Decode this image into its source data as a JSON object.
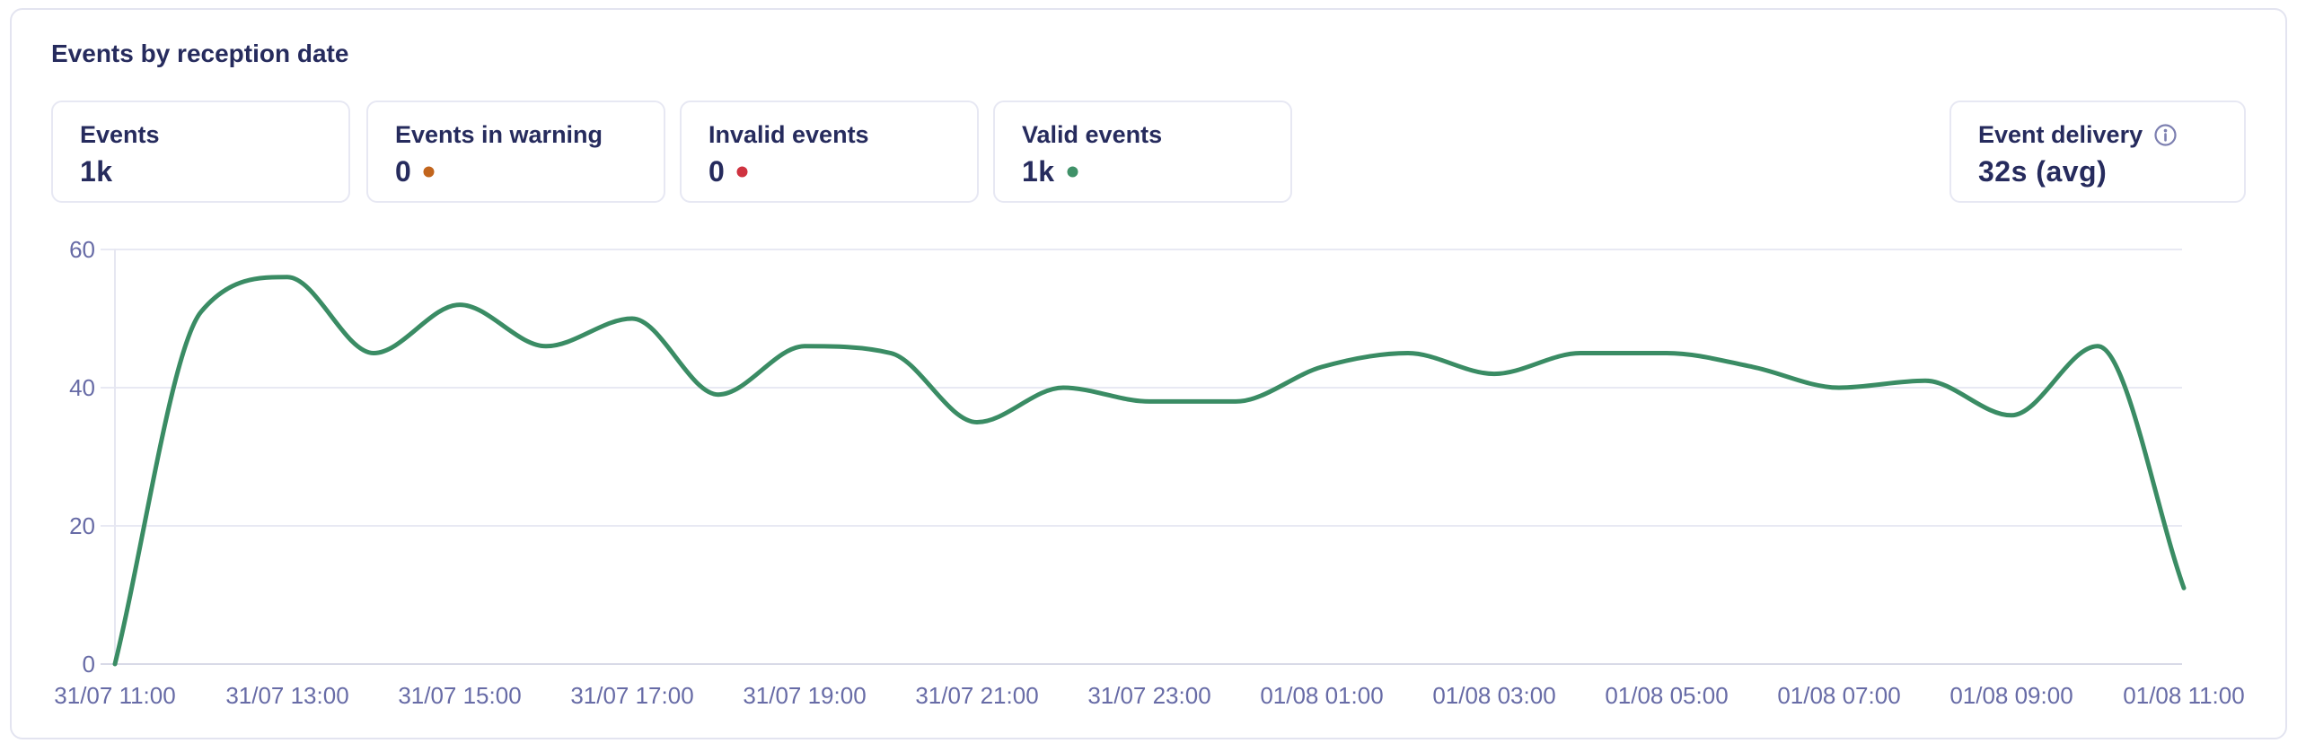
{
  "panel": {
    "title": "Events by reception date"
  },
  "stats": [
    {
      "label": "Events",
      "value": "1k"
    },
    {
      "label": "Events in warning",
      "value": "0",
      "dot_color": "#c2651d"
    },
    {
      "label": "Invalid events",
      "value": "0",
      "dot_color": "#cf3340"
    },
    {
      "label": "Valid events",
      "value": "1k",
      "dot_color": "#3f9168"
    }
  ],
  "delivery": {
    "label": "Event delivery",
    "value": "32s (avg)"
  },
  "chart_data": {
    "type": "line",
    "title": "Events by reception date",
    "xlabel": "",
    "ylabel": "",
    "ylim": [
      0,
      60
    ],
    "y_ticks": [
      0,
      20,
      40,
      60
    ],
    "grid": "horizontal",
    "legend": "none",
    "line_color": "#3a8c64",
    "x_interval_hours": 1,
    "x": [
      "31/07 11:00",
      "31/07 12:00",
      "31/07 13:00",
      "31/07 14:00",
      "31/07 15:00",
      "31/07 16:00",
      "31/07 17:00",
      "31/07 18:00",
      "31/07 19:00",
      "31/07 20:00",
      "31/07 21:00",
      "31/07 22:00",
      "31/07 23:00",
      "01/08 00:00",
      "01/08 01:00",
      "01/08 02:00",
      "01/08 03:00",
      "01/08 04:00",
      "01/08 05:00",
      "01/08 06:00",
      "01/08 07:00",
      "01/08 08:00",
      "01/08 09:00",
      "01/08 10:00",
      "01/08 11:00"
    ],
    "values": [
      0,
      51,
      56,
      45,
      52,
      46,
      50,
      39,
      46,
      45,
      35,
      40,
      38,
      38,
      43,
      45,
      42,
      45,
      45,
      43,
      40,
      41,
      36,
      46,
      11
    ],
    "x_tick_labels": [
      "31/07 11:00",
      "31/07 13:00",
      "31/07 15:00",
      "31/07 17:00",
      "31/07 19:00",
      "31/07 21:00",
      "31/07 23:00",
      "01/08 01:00",
      "01/08 03:00",
      "01/08 05:00",
      "01/08 07:00",
      "01/08 09:00",
      "01/08 11:00"
    ]
  }
}
